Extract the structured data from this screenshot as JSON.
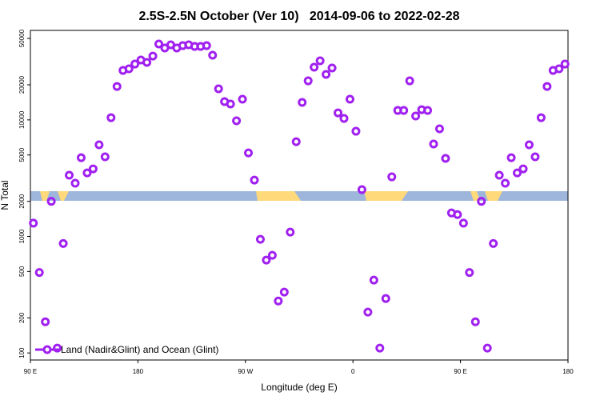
{
  "chart_data": {
    "type": "scatter",
    "title": "2.5S-2.5N October (Ver 10)   2014-09-06 to 2022-02-28",
    "x_label": "Longitude (deg E)",
    "y_label": "N Total",
    "log_y": true,
    "grid": false,
    "legend": "bottom-left",
    "xlim": [
      90,
      540
    ],
    "xticks": [
      {
        "value": 90,
        "label": "90 E"
      },
      180,
      {
        "value": 270,
        "label": "90 W"
      },
      {
        "value": 360,
        "label": "0"
      },
      {
        "value": 450,
        "label": "90 E"
      },
      {
        "value": 540,
        "label": "180"
      }
    ],
    "ylim": [
      87,
      58600
    ],
    "yticks": [
      100,
      200,
      500,
      1000,
      2000,
      5000,
      10000,
      20000,
      50000
    ],
    "x": [
      92.5,
      97.5,
      102.5,
      107.5,
      112.5,
      117.5,
      122.5,
      127.5,
      132.5,
      137.5,
      142.5,
      147.5,
      152.5,
      157.5,
      162.5,
      167.5,
      172.5,
      177.5,
      182.5,
      187.5,
      192.5,
      197.5,
      202.5,
      207.5,
      212.5,
      217.5,
      222.5,
      227.5,
      232.5,
      237.5,
      242.5,
      247.5,
      252.5,
      257.5,
      262.5,
      267.5,
      272.5,
      277.5,
      282.5,
      287.5,
      292.5,
      297.5,
      302.5,
      307.5,
      312.5,
      317.5,
      322.5,
      327.5,
      332.5,
      337.5,
      342.5,
      347.5,
      352.5,
      357.5,
      362.5,
      367.5,
      372.5,
      377.5,
      382.5,
      387.5,
      392.5,
      397.5,
      402.5,
      407.5,
      412.5,
      417.5,
      422.5,
      427.5,
      432.5,
      437.5,
      442.5,
      447.5,
      452.5,
      457.5,
      462.5,
      467.5,
      472.5,
      477.5,
      482.5,
      487.5,
      492.5,
      497.5,
      502.5,
      507.5,
      512.5,
      517.5,
      522.5,
      527.5,
      532.5,
      537.5
    ],
    "series": [
      {
        "name": "Land (Nadir&Glint) and Ocean (Glint)",
        "color": "#a020f0",
        "values": [
          1300,
          490,
          185,
          2000,
          110,
          870,
          3350,
          2860,
          4740,
          3510,
          3800,
          6110,
          4820,
          10450,
          19360,
          26560,
          27420,
          30140,
          32650,
          31120,
          35300,
          44770,
          41400,
          44060,
          41400,
          43360,
          44060,
          42680,
          42680,
          43360,
          35890,
          18470,
          14350,
          13680,
          9820,
          15040,
          5210,
          3045,
          944,
          626,
          689,
          279,
          333,
          1089,
          6500,
          14120,
          21630,
          28310,
          32140,
          24550,
          27860,
          11490,
          10290,
          15040,
          7990,
          2520,
          224,
          422,
          110,
          293,
          3245,
          12050,
          12050,
          21630,
          10790,
          12240,
          12050,
          6210,
          8380,
          4670,
          1590,
          1540,
          1300,
          490,
          185,
          2000,
          110,
          870,
          3350,
          2860,
          4740,
          3510,
          3800,
          6110,
          4820,
          10450,
          19360,
          26560,
          27420,
          30140
        ]
      }
    ]
  }
}
